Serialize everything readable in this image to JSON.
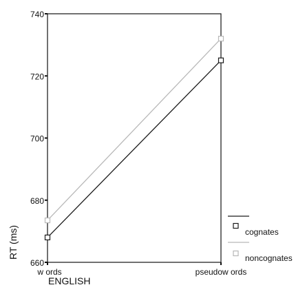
{
  "chart_data": {
    "type": "line",
    "title": "",
    "xlabel": "ENGLISH",
    "ylabel": "RT (ms)",
    "categories": [
      "words",
      "pseudowords"
    ],
    "category_tick_labels": [
      "w ords",
      "pseudow ords"
    ],
    "ylim": [
      660,
      740
    ],
    "yticks": [
      660,
      680,
      700,
      720,
      740
    ],
    "grid": false,
    "legend_position": "bottom-right, outside plot",
    "series": [
      {
        "name": "cognates",
        "values": [
          668,
          725
        ],
        "color": "#1a1a1a",
        "marker": "open-square"
      },
      {
        "name": "noncognates",
        "values": [
          673.5,
          732
        ],
        "color": "#b8b8b8",
        "marker": "open-square"
      }
    ]
  }
}
